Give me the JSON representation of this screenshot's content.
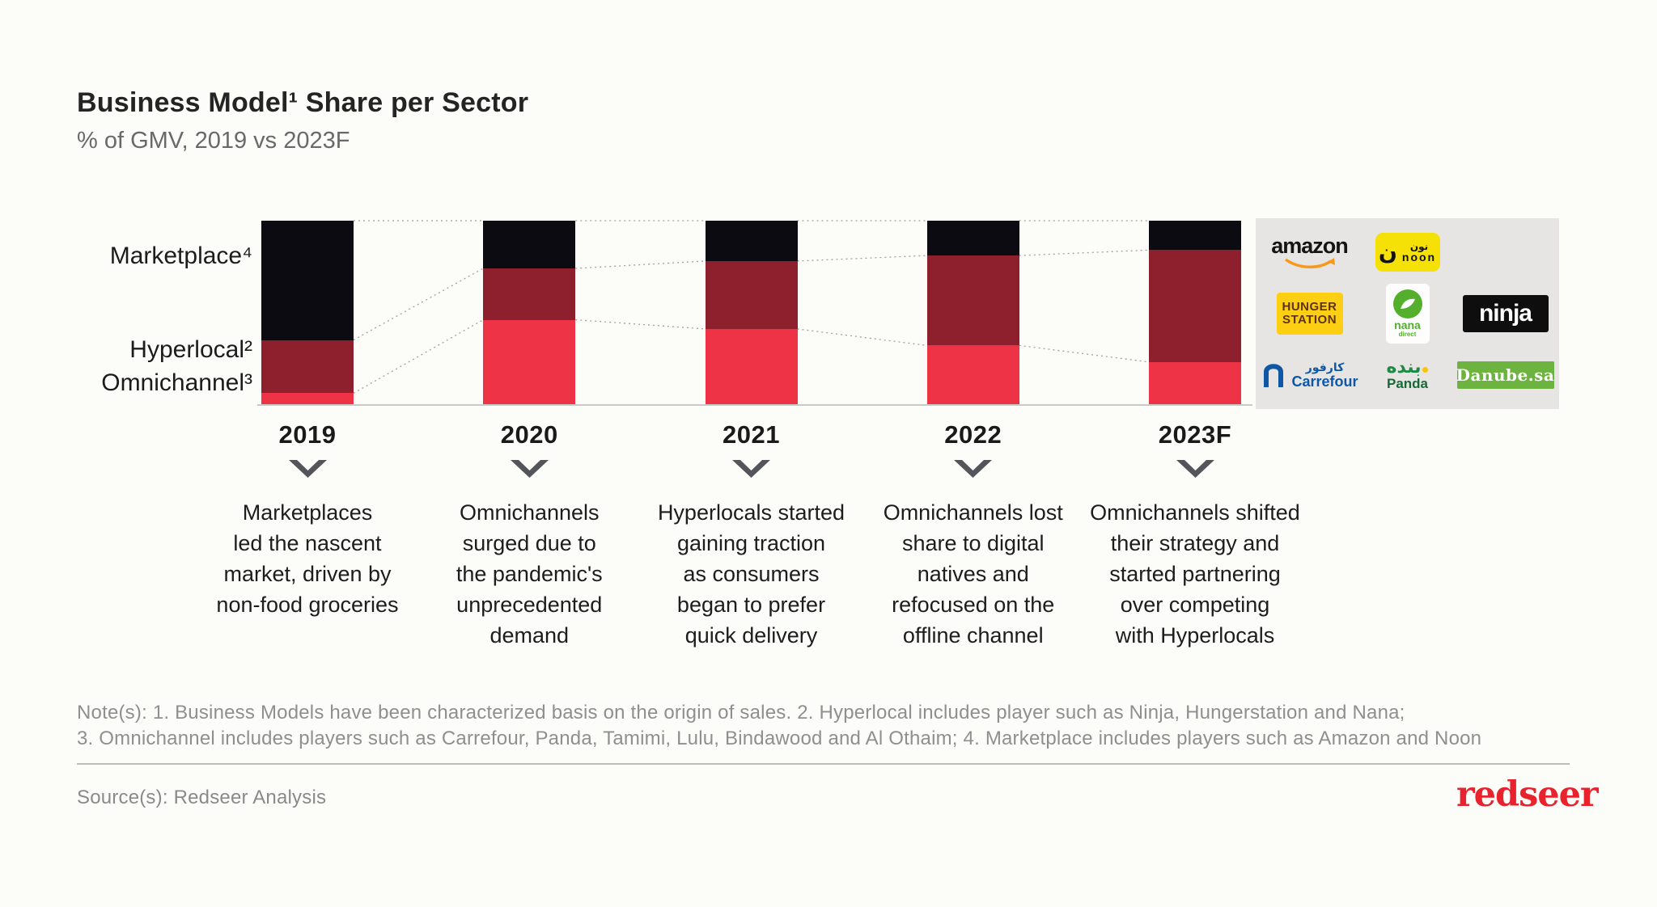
{
  "header": {
    "title": "Business Model¹ Share per Sector",
    "subtitle": "% of GMV, 2019 vs 2023F"
  },
  "chart_data": {
    "type": "bar",
    "stacked": true,
    "title": "Business Model Share per Sector",
    "unit": "% of GMV",
    "ylim": [
      0,
      100
    ],
    "gridlines": false,
    "legend_position": "left",
    "connector_style": "dotted",
    "categories": [
      "2019",
      "2020",
      "2021",
      "2022",
      "2023F"
    ],
    "series": [
      {
        "name": "Marketplace",
        "label": "Marketplace⁴",
        "color": "#0c0b11",
        "values": [
          65,
          26,
          22,
          19,
          16
        ]
      },
      {
        "name": "Hyperlocal",
        "label": "Hyperlocal²",
        "color": "#8e202d",
        "values": [
          29,
          28,
          37,
          49,
          61
        ]
      },
      {
        "name": "Omnichannel",
        "label": "Omnichannel³",
        "color": "#ee3346",
        "values": [
          6,
          46,
          41,
          32,
          23
        ]
      }
    ]
  },
  "annotations": [
    {
      "year": "2019",
      "lines": [
        "Marketplaces",
        "led the nascent",
        "market, driven by",
        "non-food groceries"
      ]
    },
    {
      "year": "2020",
      "lines": [
        "Omnichannels",
        "surged due to",
        "the pandemic's",
        "unprecedented",
        "demand"
      ]
    },
    {
      "year": "2021",
      "lines": [
        "Hyperlocals started",
        "gaining traction",
        "as consumers",
        "began to prefer",
        "quick delivery"
      ]
    },
    {
      "year": "2022",
      "lines": [
        "Omnichannels lost",
        "share to digital",
        "natives and",
        "refocused on the",
        "offline channel"
      ]
    },
    {
      "year": "2023F",
      "lines": [
        "Omnichannels shifted",
        "their strategy and",
        "started partnering",
        "over competing",
        "with Hyperlocals"
      ]
    }
  ],
  "logos": {
    "amazon": "amazon",
    "noon_glyph": "ن",
    "noon_ar": "نون",
    "noon_en": "noon",
    "hunger_line1": "HUNGER",
    "hunger_line2": "STATION",
    "nana": "nana",
    "nana_sub": "direct",
    "ninja": "ninja",
    "carrefour_ar": "كارفور",
    "carrefour_en": "Carrefour",
    "panda_ar": "بنده",
    "panda_en": "Panda",
    "danube": "Danube.sa"
  },
  "footer": {
    "note_line1": "Note(s): 1. Business Models have been characterized basis on the origin of sales. 2. Hyperlocal includes player such as Ninja, Hungerstation and Nana;",
    "note_line2": "3. Omnichannel includes players such as Carrefour, Panda, Tamimi, Lulu, Bindawood and Al Othaim; 4. Marketplace includes players such as Amazon and Noon",
    "source": "Source(s): Redseer Analysis",
    "brand": "redseer"
  },
  "colors": {
    "background": "#fcfcf9",
    "panel_background": "#e6e5e3",
    "marketplace_black": "#0c0b11",
    "hyperlocal_dark_red": "#8e202d",
    "omnichannel_red": "#ee3346",
    "brand_red": "#e8232e",
    "chevron_gray": "#54555a"
  }
}
